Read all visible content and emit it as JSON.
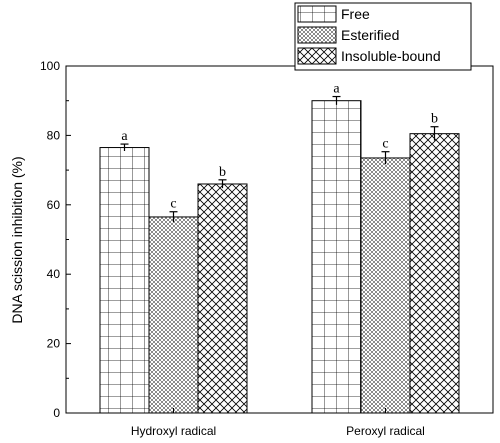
{
  "chart_data": {
    "type": "bar",
    "title": "",
    "xlabel": "",
    "ylabel": "DNA scission inhibition (%)",
    "ylim": [
      0,
      100
    ],
    "yticks": [
      0,
      20,
      40,
      60,
      80,
      100
    ],
    "categories": [
      "Hydroxyl radical",
      "Peroxyl radical"
    ],
    "series": [
      {
        "name": "Free",
        "pattern": "grid",
        "values": [
          76.5,
          90.0
        ],
        "errors": [
          1.0,
          1.2
        ],
        "letters": [
          "a",
          "a"
        ]
      },
      {
        "name": "Esterified",
        "pattern": "fine-crosshatch",
        "values": [
          56.5,
          73.5
        ],
        "errors": [
          1.5,
          1.8
        ],
        "letters": [
          "c",
          "c"
        ]
      },
      {
        "name": "Insoluble-bound",
        "pattern": "coarse-crosshatch",
        "values": [
          66.0,
          80.5
        ],
        "errors": [
          1.2,
          2.0
        ],
        "letters": [
          "b",
          "b"
        ]
      }
    ],
    "grid": false,
    "legend_position": "top-right",
    "colors": {
      "stroke": "#000000",
      "background": "#ffffff"
    }
  }
}
